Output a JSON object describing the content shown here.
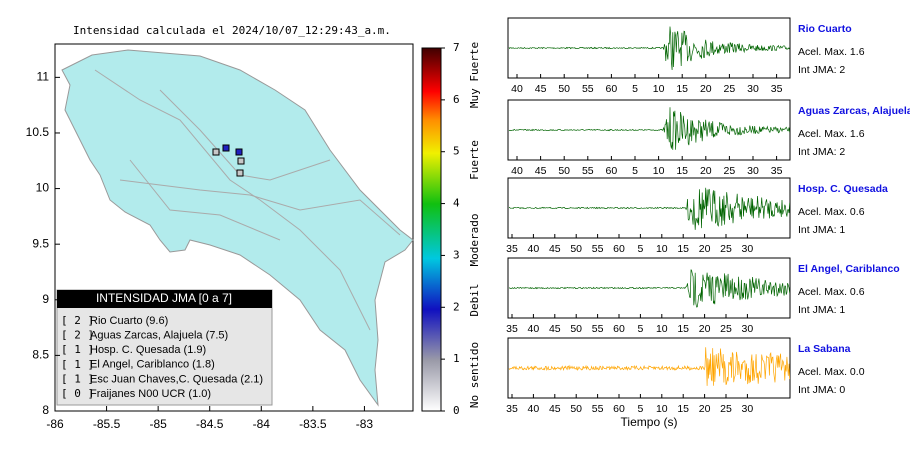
{
  "map": {
    "title": "Intensidad calculada el 2024/10/07_12:29:43_a.m.",
    "xlim": [
      -86,
      -82.5
    ],
    "xticks": [
      -86,
      -85.5,
      -85,
      -84.5,
      -84,
      -83.5,
      -83
    ],
    "ylim": [
      8,
      11.3
    ],
    "yticks": [
      8,
      8.5,
      9,
      9.5,
      10,
      10.5,
      11
    ]
  },
  "colorbar": {
    "lim": [
      0,
      7
    ],
    "ticks": [
      0,
      1,
      2,
      3,
      4,
      5,
      6,
      7
    ],
    "levels": [
      "Muy Fuerte",
      "Fuerte",
      "Moderado",
      "Debil",
      "No sentido"
    ]
  },
  "legend": {
    "title": "INTENSIDAD JMA [0 a 7]",
    "entries": [
      {
        "jma": "[ 2 ]",
        "name": "Rio Cuarto (9.6)"
      },
      {
        "jma": "[ 2 ]",
        "name": "Aguas Zarcas, Alajuela (7.5)"
      },
      {
        "jma": "[ 1 ]",
        "name": "Hosp. C. Quesada (1.9)"
      },
      {
        "jma": "[ 1 ]",
        "name": "El Angel, Cariblanco (1.8)"
      },
      {
        "jma": "[ 1 ]",
        "name": "Esc Juan Chaves,C. Quesada (2.1)"
      },
      {
        "jma": "[ 0 ]",
        "name": "Fraijanes N00 UCR (1.0)"
      }
    ]
  },
  "traces": [
    {
      "station": "Rio Cuarto",
      "accel": "Acel. Max. 1.6",
      "jma": "Int JMA: 2",
      "color": "#006400",
      "ticks": [
        40,
        45,
        50,
        55,
        60,
        5,
        10,
        15,
        20,
        25,
        30,
        35
      ]
    },
    {
      "station": "Aguas Zarcas, Alajuela",
      "accel": "Acel. Max. 1.6",
      "jma": "Int JMA: 2",
      "color": "#006400",
      "ticks": [
        40,
        45,
        50,
        55,
        60,
        5,
        10,
        15,
        20,
        25,
        30,
        35
      ]
    },
    {
      "station": "Hosp. C. Quesada",
      "accel": "Acel. Max. 0.6",
      "jma": "Int JMA: 1",
      "color": "#006400",
      "ticks": [
        35,
        40,
        45,
        50,
        55,
        60,
        5,
        10,
        15,
        20,
        25,
        30
      ]
    },
    {
      "station": "El Angel, Cariblanco",
      "accel": "Acel. Max. 0.6",
      "jma": "Int JMA: 1",
      "color": "#006400",
      "ticks": [
        35,
        40,
        45,
        50,
        55,
        60,
        5,
        10,
        15,
        20,
        25,
        30
      ]
    },
    {
      "station": "La Sabana",
      "accel": "Acel. Max. 0.0",
      "jma": "Int JMA: 0",
      "color": "#ffa500",
      "ticks": [
        35,
        40,
        45,
        50,
        55,
        60,
        5,
        10,
        15,
        20,
        25,
        30
      ]
    }
  ],
  "xlabel": "Tiempo (s)"
}
